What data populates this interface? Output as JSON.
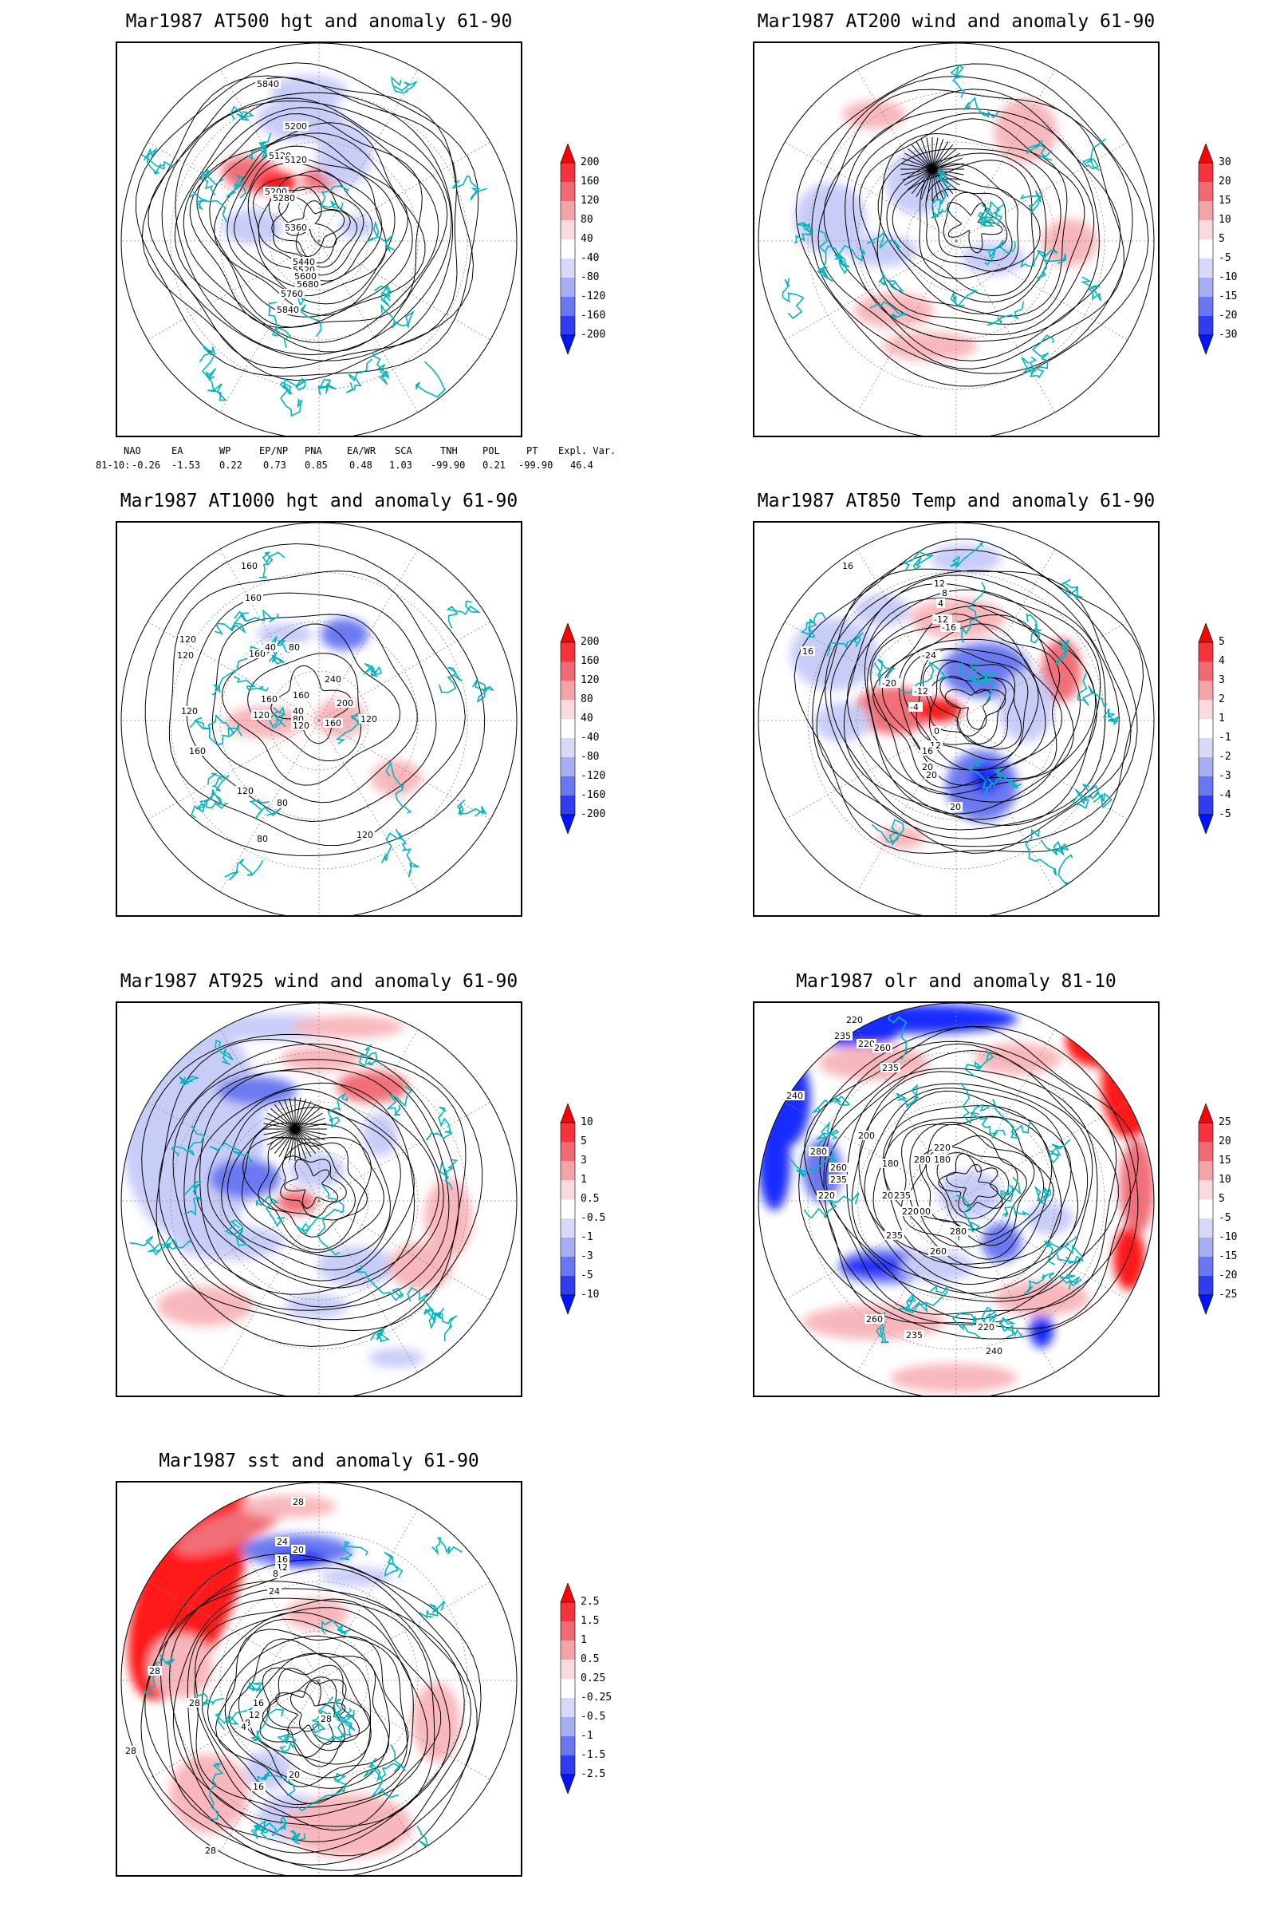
{
  "panels": [
    {
      "id": "z500",
      "title": "Mar1987 AT500 hgt and anomaly 61-90",
      "scale": [
        "200",
        "160",
        "120",
        "80",
        "40",
        "-40",
        "-80",
        "-120",
        "-160",
        "-200"
      ],
      "contour_labels": [
        "5840",
        "5200",
        "5120",
        "5120",
        "5200",
        "5280",
        "5360",
        "5440",
        "5520",
        "5600",
        "5680",
        "5760",
        "5840"
      ]
    },
    {
      "id": "u200",
      "title": "Mar1987 AT200 wind and anomaly 61-90",
      "scale": [
        "30",
        "20",
        "15",
        "10",
        "5",
        "-5",
        "-10",
        "-15",
        "-20",
        "-30"
      ],
      "contour_labels": []
    },
    {
      "id": "z1000",
      "title": "Mar1987 AT1000 hgt and anomaly 61-90",
      "scale": [
        "200",
        "160",
        "120",
        "80",
        "40",
        "-40",
        "-80",
        "-120",
        "-160",
        "-200"
      ],
      "contour_labels": [
        "160",
        "160",
        "120",
        "120",
        "160",
        "40",
        "80",
        "160",
        "120",
        "160",
        "240",
        "40",
        "80",
        "120",
        "200",
        "160",
        "120",
        "160",
        "120",
        "120",
        "80",
        "80",
        "120"
      ]
    },
    {
      "id": "t850",
      "title": "Mar1987 AT850 Temp and anomaly 61-90",
      "scale": [
        "5",
        "4",
        "3",
        "2",
        "1",
        "-1",
        "-2",
        "-3",
        "-4",
        "-5"
      ],
      "contour_labels": [
        "16",
        "12",
        "8",
        "4",
        "-12",
        "-16",
        "16",
        "-24",
        "-20",
        "-12",
        "-4",
        "0",
        "12",
        "16",
        "20",
        "20",
        "20"
      ]
    },
    {
      "id": "u925",
      "title": "Mar1987 AT925 wind and anomaly 61-90",
      "scale": [
        "10",
        "5",
        "3",
        "1",
        "0.5",
        "-0.5",
        "-1",
        "-3",
        "-5",
        "-10"
      ],
      "contour_labels": []
    },
    {
      "id": "olr",
      "title": "Mar1987 olr and anomaly 81-10",
      "scale": [
        "25",
        "20",
        "15",
        "10",
        "5",
        "-5",
        "-10",
        "-15",
        "-20",
        "-25"
      ],
      "contour_labels": [
        "220",
        "235",
        "220",
        "260",
        "235",
        "240",
        "280",
        "260",
        "220",
        "235",
        "200",
        "180",
        "200",
        "235",
        "280",
        "220",
        "180",
        "200",
        "220",
        "235",
        "260",
        "280",
        "260",
        "235",
        "220",
        "240"
      ]
    },
    {
      "id": "sst",
      "title": "Mar1987 sst and anomaly 61-90",
      "scale": [
        "2.5",
        "1.5",
        "1",
        "0.5",
        "0.25",
        "-0.25",
        "-0.5",
        "-1",
        "-1.5",
        "-2.5"
      ],
      "contour_labels": [
        "28",
        "24",
        "20",
        "16",
        "12",
        "8",
        "28",
        "28",
        "28",
        "24",
        "16",
        "12",
        "8",
        "4",
        "16",
        "20",
        "28",
        "28"
      ]
    }
  ],
  "indices": {
    "headers": [
      "NAO",
      "EA",
      "WP",
      "EP/NP",
      "PNA",
      "EA/WR",
      "SCA",
      "TNH",
      "POL",
      "PT",
      "Expl. Var."
    ],
    "row_label": "81-10:",
    "values": [
      "-0.26",
      "-1.53",
      "0.22",
      "0.73",
      "0.85",
      "0.48",
      "1.03",
      "-99.90",
      "0.21",
      "-99.90",
      "46.4"
    ]
  },
  "colors": {
    "red_strong": "#ff0000",
    "red_mid": "#f0606a",
    "red_light": "#f7b0b6",
    "blue_strong": "#0015ff",
    "blue_mid": "#5b6cf0",
    "blue_light": "#c3c8f7",
    "coast": "#00b5c0"
  }
}
